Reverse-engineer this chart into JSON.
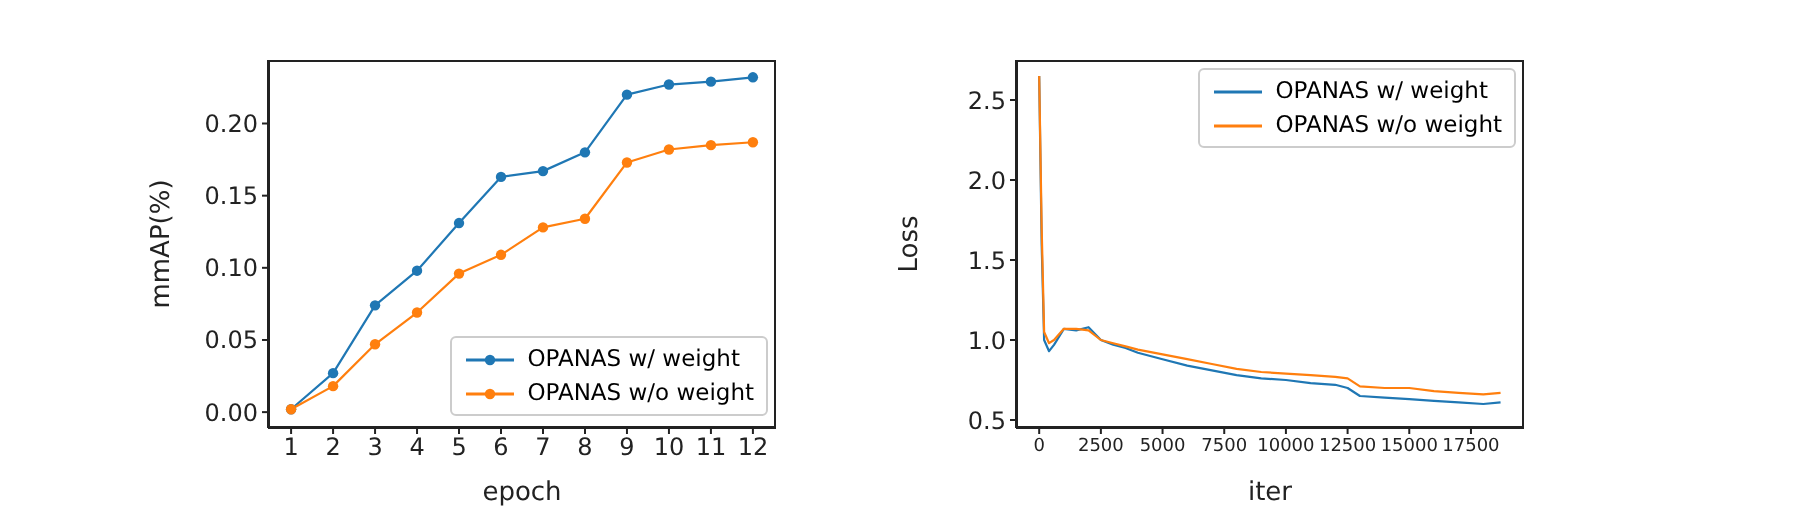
{
  "chart_data": [
    {
      "type": "line",
      "xlabel": "epoch",
      "ylabel": "mmAP(%)",
      "x": [
        1,
        2,
        3,
        4,
        5,
        6,
        7,
        8,
        9,
        10,
        11,
        12
      ],
      "xlim": [
        0.45,
        12.55
      ],
      "xticks": [
        1,
        2,
        3,
        4,
        5,
        6,
        7,
        8,
        9,
        10,
        11,
        12
      ],
      "ylim": [
        -0.011,
        0.244
      ],
      "yticks": [
        {
          "value": 0,
          "label": "0.00"
        },
        {
          "value": 0.05,
          "label": "0.05"
        },
        {
          "value": 0.1,
          "label": "0.10"
        },
        {
          "value": 0.15,
          "label": "0.15"
        },
        {
          "value": 0.2,
          "label": "0.20"
        }
      ],
      "marker": "circle",
      "legend": "bottom right",
      "series": [
        {
          "name": "OPANAS w/ weight",
          "color": "#1f77b4",
          "values": [
            0.002,
            0.027,
            0.074,
            0.098,
            0.131,
            0.163,
            0.167,
            0.18,
            0.22,
            0.227,
            0.229,
            0.232
          ]
        },
        {
          "name": "OPANAS w/o weight",
          "color": "#ff7f0e",
          "values": [
            0.002,
            0.018,
            0.047,
            0.069,
            0.096,
            0.109,
            0.128,
            0.134,
            0.173,
            0.182,
            0.185,
            0.187
          ]
        }
      ]
    },
    {
      "type": "line",
      "xlabel": "iter",
      "ylabel": "Loss",
      "xlim": [
        -940,
        19650
      ],
      "xticks": [
        0,
        2500,
        5000,
        7500,
        10000,
        12500,
        15000,
        17500
      ],
      "ylim": [
        0.45,
        2.75
      ],
      "yticks": [
        {
          "value": 0.5,
          "label": "0.5"
        },
        {
          "value": 1,
          "label": "1.0"
        },
        {
          "value": 1.5,
          "label": "1.5"
        },
        {
          "value": 2,
          "label": "2.0"
        },
        {
          "value": 2.5,
          "label": "2.5"
        }
      ],
      "marker": "none",
      "legend": "top right",
      "series": [
        {
          "name": "OPANAS w/ weight",
          "color": "#1f77b4",
          "x": [
            0,
            100,
            200,
            400,
            600,
            1000,
            1500,
            2000,
            2500,
            3000,
            3500,
            4000,
            5000,
            6000,
            7000,
            8000,
            9000,
            10000,
            11000,
            12000,
            12500,
            13000,
            14000,
            15000,
            16000,
            17000,
            18000,
            18700
          ],
          "values": [
            2.65,
            1.6,
            1.0,
            0.93,
            0.97,
            1.07,
            1.06,
            1.08,
            1.0,
            0.97,
            0.95,
            0.92,
            0.88,
            0.84,
            0.81,
            0.78,
            0.76,
            0.75,
            0.73,
            0.72,
            0.7,
            0.65,
            0.64,
            0.63,
            0.62,
            0.61,
            0.6,
            0.61
          ]
        },
        {
          "name": "OPANAS w/o weight",
          "color": "#ff7f0e",
          "x": [
            0,
            100,
            200,
            400,
            600,
            1000,
            1500,
            2000,
            2500,
            3000,
            3500,
            4000,
            5000,
            6000,
            7000,
            8000,
            9000,
            10000,
            11000,
            12000,
            12500,
            13000,
            14000,
            15000,
            16000,
            17000,
            18000,
            18700
          ],
          "values": [
            2.65,
            1.7,
            1.05,
            0.98,
            1.0,
            1.07,
            1.07,
            1.06,
            1.0,
            0.98,
            0.96,
            0.94,
            0.91,
            0.88,
            0.85,
            0.82,
            0.8,
            0.79,
            0.78,
            0.77,
            0.76,
            0.71,
            0.7,
            0.7,
            0.68,
            0.67,
            0.66,
            0.67
          ]
        }
      ]
    }
  ]
}
